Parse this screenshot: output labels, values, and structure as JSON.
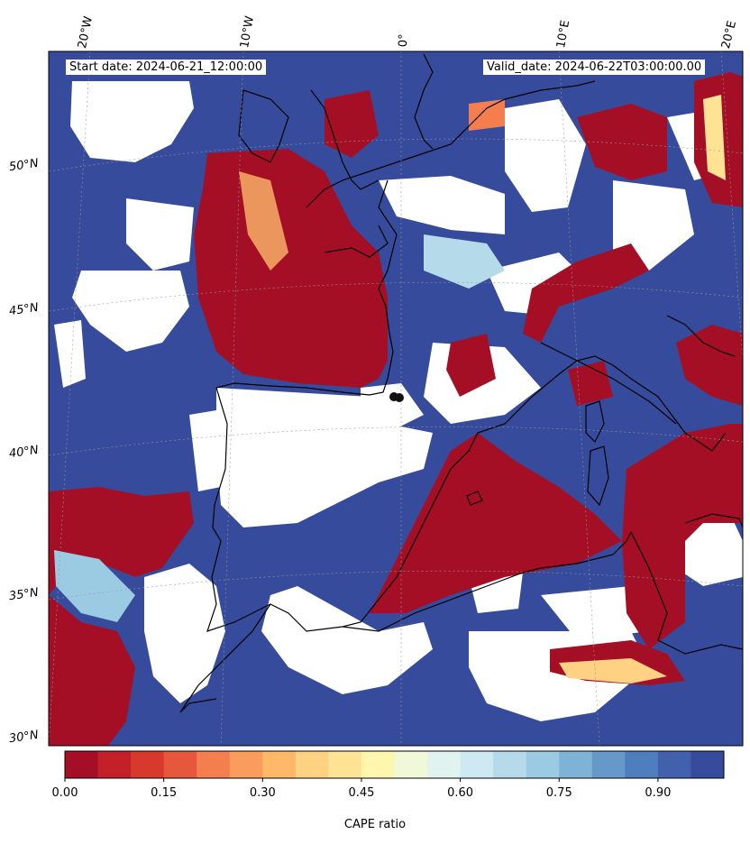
{
  "map": {
    "start_date": "Start date: 2024-06-21_12:00:00",
    "valid_date": "Valid_date: 2024-06-22T03:00:00.00",
    "lon_labels": [
      "20°W",
      "10°W",
      "0°",
      "10°E",
      "20°E"
    ],
    "lat_labels": [
      "50°N",
      "45°N",
      "40°N",
      "35°N",
      "30°N"
    ]
  },
  "colorbar": {
    "title": "CAPE ratio",
    "tick_labels": [
      "0.00",
      "0.15",
      "0.30",
      "0.45",
      "0.60",
      "0.75",
      "0.90"
    ],
    "colors": [
      "#a50f25",
      "#c3202a",
      "#d73a2c",
      "#e6573b",
      "#f57e4f",
      "#fa9c5c",
      "#fdb86a",
      "#fed183",
      "#fee394",
      "#fef6ad",
      "#f1f8d8",
      "#e1f3ef",
      "#cde9f4",
      "#b5dbeb",
      "#9acbe2",
      "#7db3d7",
      "#6599c9",
      "#4d7ebe",
      "#4161ac",
      "#364b9b"
    ]
  }
}
